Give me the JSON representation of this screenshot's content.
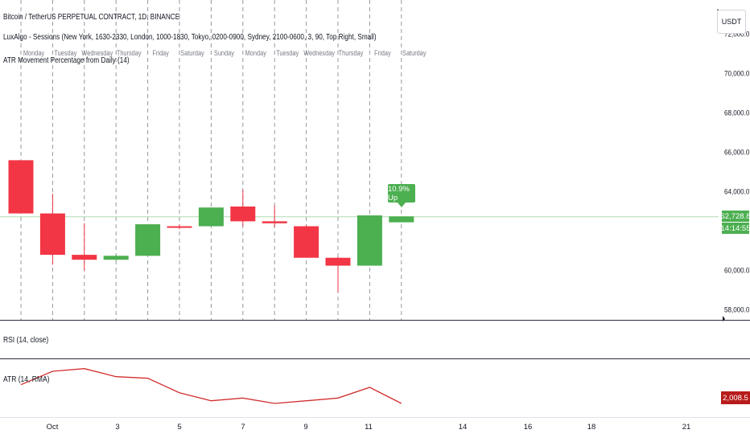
{
  "legend": {
    "symbol": "Bitcoin / TetherUS PERPETUAL CONTRACT, 1D, BINANCE",
    "sessions_indicator": "LuxAlgo - Sessions (New York, 1630-2330, London, 1000-1830, Tokyo, 0200-0900, Sydney, 2100-0600, 3, 90, Top Right, Small)",
    "atr_movement_indicator": "ATR Movement Percentage from Daily (14)"
  },
  "currency": "USDT",
  "price_axis_labels": [
    "72,000.0",
    "70,000.0",
    "68,000.0",
    "66,000.0",
    "64,000.0",
    "60,000.0",
    "58,000.0"
  ],
  "current_price": {
    "value": "62,728.8",
    "countdown": "14:14:55",
    "color": "#4caf50"
  },
  "day_labels": [
    "Monday",
    "Tuesday",
    "Wednesday",
    "Thursday",
    "Friday",
    "Saturday",
    "Sunday",
    "Monday",
    "Tuesday",
    "Wednesday",
    "Thursday",
    "Friday",
    "Saturday"
  ],
  "atr_tooltip": {
    "text": "10.9% Up",
    "color": "#4caf50"
  },
  "colors": {
    "up": "#4caf50",
    "down": "#f23645",
    "atr_line": "#d32f2f",
    "grid_dash": "#9598a1"
  },
  "chart_data": {
    "type": "candlestick",
    "y_range": [
      57500,
      73200
    ],
    "candles": [
      {
        "open": 65600,
        "high": 65600,
        "low": 62900,
        "close": 62900
      },
      {
        "open": 62900,
        "high": 63900,
        "low": 60300,
        "close": 60800
      },
      {
        "open": 60800,
        "high": 62400,
        "low": 60000,
        "close": 60550
      },
      {
        "open": 60550,
        "high": 60800,
        "low": 60500,
        "close": 60750
      },
      {
        "open": 60750,
        "high": 62350,
        "low": 60750,
        "close": 62350
      },
      {
        "open": 62250,
        "high": 62350,
        "low": 62100,
        "close": 62200
      },
      {
        "open": 62250,
        "high": 63200,
        "low": 62250,
        "close": 63200
      },
      {
        "open": 63250,
        "high": 64100,
        "low": 62250,
        "close": 62500
      },
      {
        "open": 62500,
        "high": 63300,
        "low": 62200,
        "close": 62400
      },
      {
        "open": 62250,
        "high": 62300,
        "low": 60650,
        "close": 60650
      },
      {
        "open": 60650,
        "high": 60700,
        "low": 58900,
        "close": 60250
      },
      {
        "open": 60250,
        "high": 62800,
        "low": 60250,
        "close": 62800
      },
      {
        "open": 62450,
        "high": 62750,
        "low": 62450,
        "close": 62750
      }
    ],
    "current_price": 62728.8,
    "atr_values": [
      2400,
      2650,
      2700,
      2550,
      2520,
      2250,
      2100,
      2150,
      2050,
      2100,
      2150,
      2350,
      2050
    ]
  },
  "rsi_pane": {
    "label": "RSI (14, close)"
  },
  "atr_pane": {
    "label": "ATR (14, RMA)",
    "value": "2,008.5",
    "color": "#b71c1c"
  },
  "time_axis_labels": [
    "Oct",
    "3",
    "5",
    "7",
    "9",
    "11",
    "14",
    "16",
    "18",
    "21"
  ]
}
